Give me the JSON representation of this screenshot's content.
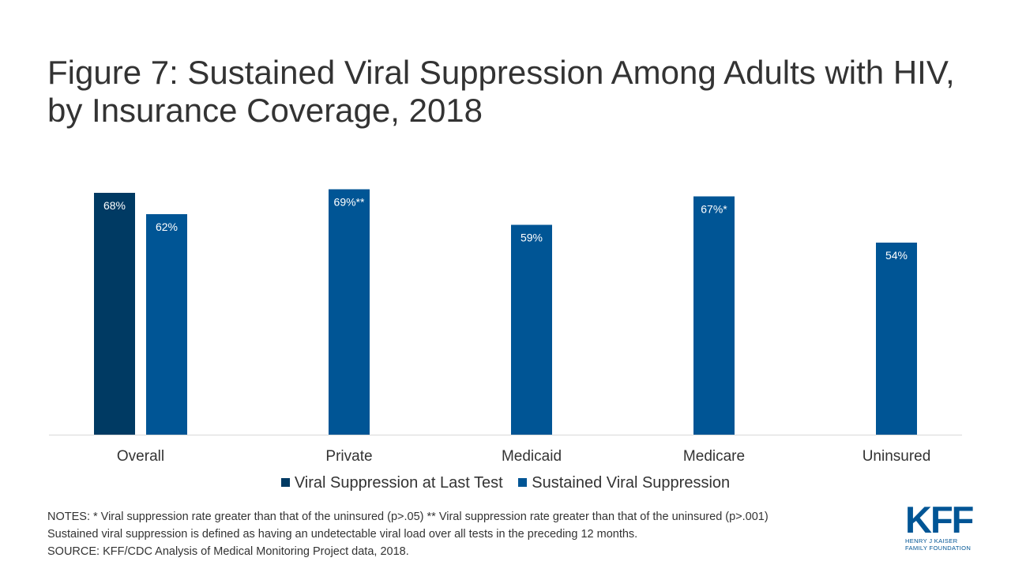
{
  "chart_data": {
    "type": "bar",
    "title": "Figure 7: Sustained Viral Suppression Among Adults with HIV, by Insurance Coverage, 2018",
    "categories": [
      "Overall",
      "Private",
      "Medicaid",
      "Medicare",
      "Uninsured"
    ],
    "series": [
      {
        "name": "Viral Suppression at Last Test",
        "color": "#003A63",
        "values": [
          68,
          null,
          null,
          null,
          null
        ],
        "labels": [
          "68%",
          "",
          "",
          "",
          ""
        ]
      },
      {
        "name": "Sustained Viral Suppression",
        "color": "#005595",
        "values": [
          62,
          69,
          59,
          67,
          54
        ],
        "labels": [
          "62%",
          "69%**",
          "59%",
          "67%*",
          "54%"
        ]
      }
    ],
    "ylim": [
      0,
      100
    ],
    "grid": false,
    "legend_position": "bottom"
  },
  "notes": {
    "line1": "NOTES: * Viral suppression rate greater than that of the uninsured  (p>.05) ** Viral suppression rate greater than that of the uninsured (p>.001)",
    "line2": "Sustained viral suppression is defined as having  an undetectable viral load over all tests in the preceding 12 months.",
    "line3": "SOURCE: KFF/CDC Analysis of Medical Monitoring Project data, 2018."
  },
  "logo": {
    "mark": "KFF",
    "line1": "HENRY J KAISER",
    "line2": "FAMILY FOUNDATION",
    "color": "#005595"
  }
}
